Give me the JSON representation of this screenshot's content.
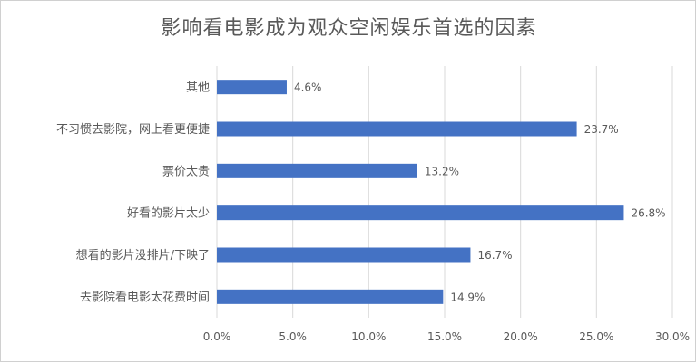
{
  "chart_data": {
    "type": "bar",
    "orientation": "horizontal",
    "title": "影响看电影成为观众空闲娱乐首选的因素",
    "categories": [
      "其他",
      "不习惯去影院，网上看更便捷",
      "票价太贵",
      "好看的影片太少",
      "想看的影片没排片/下映了",
      "去影院看电影太花费时间"
    ],
    "values": [
      4.6,
      23.7,
      13.2,
      26.8,
      16.7,
      14.9
    ],
    "value_labels": [
      "4.6%",
      "23.7%",
      "13.2%",
      "26.8%",
      "16.7%",
      "14.9%"
    ],
    "xlim": [
      0,
      30
    ],
    "x_ticks": [
      "0.0%",
      "5.0%",
      "10.0%",
      "15.0%",
      "20.0%",
      "25.0%",
      "30.0%"
    ],
    "x_tick_values": [
      0,
      5,
      10,
      15,
      20,
      25,
      30
    ],
    "grid": "vertical",
    "colors": {
      "bar": "#4472C4",
      "grid": "#d9d9d9",
      "text": "#595959"
    }
  }
}
